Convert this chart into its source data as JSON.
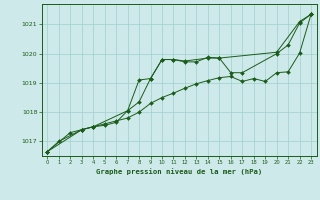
{
  "title": "Graphe pression niveau de la mer (hPa)",
  "background_color": "#cee9e9",
  "grid_color": "#9fcfcf",
  "line_color": "#1a5c1a",
  "xlim": [
    -0.5,
    23.5
  ],
  "ylim": [
    1016.5,
    1021.7
  ],
  "yticks": [
    1017,
    1018,
    1019,
    1020,
    1021
  ],
  "xticks": [
    0,
    1,
    2,
    3,
    4,
    5,
    6,
    7,
    8,
    9,
    10,
    11,
    12,
    13,
    14,
    15,
    16,
    17,
    18,
    19,
    20,
    21,
    22,
    23
  ],
  "series1_x": [
    0,
    1,
    3,
    4,
    7,
    8,
    9,
    10,
    11,
    12,
    14,
    15,
    20,
    22,
    23
  ],
  "series1_y": [
    1016.65,
    1017.0,
    1017.4,
    1017.5,
    1018.05,
    1018.35,
    1019.15,
    1019.8,
    1019.8,
    1019.75,
    1019.85,
    1019.85,
    1020.05,
    1021.1,
    1021.35
  ],
  "series2_x": [
    0,
    3,
    4,
    5,
    6,
    7,
    8,
    9,
    10,
    11,
    12,
    13,
    14,
    15,
    16,
    17,
    20,
    21,
    22,
    23
  ],
  "series2_y": [
    1016.65,
    1017.4,
    1017.5,
    1017.55,
    1017.65,
    1018.05,
    1019.1,
    1019.15,
    1019.8,
    1019.8,
    1019.72,
    1019.72,
    1019.88,
    1019.85,
    1019.35,
    1019.35,
    1020.0,
    1020.3,
    1021.05,
    1021.35
  ],
  "series3_x": [
    0,
    2,
    3,
    4,
    5,
    6,
    7,
    8,
    9,
    10,
    11,
    12,
    13,
    14,
    15,
    16,
    17,
    18,
    19,
    20,
    21,
    22,
    23
  ],
  "series3_y": [
    1016.65,
    1017.3,
    1017.4,
    1017.5,
    1017.6,
    1017.7,
    1017.8,
    1018.0,
    1018.3,
    1018.5,
    1018.65,
    1018.82,
    1018.97,
    1019.08,
    1019.18,
    1019.22,
    1019.05,
    1019.15,
    1019.05,
    1019.35,
    1019.38,
    1020.02,
    1021.35
  ]
}
